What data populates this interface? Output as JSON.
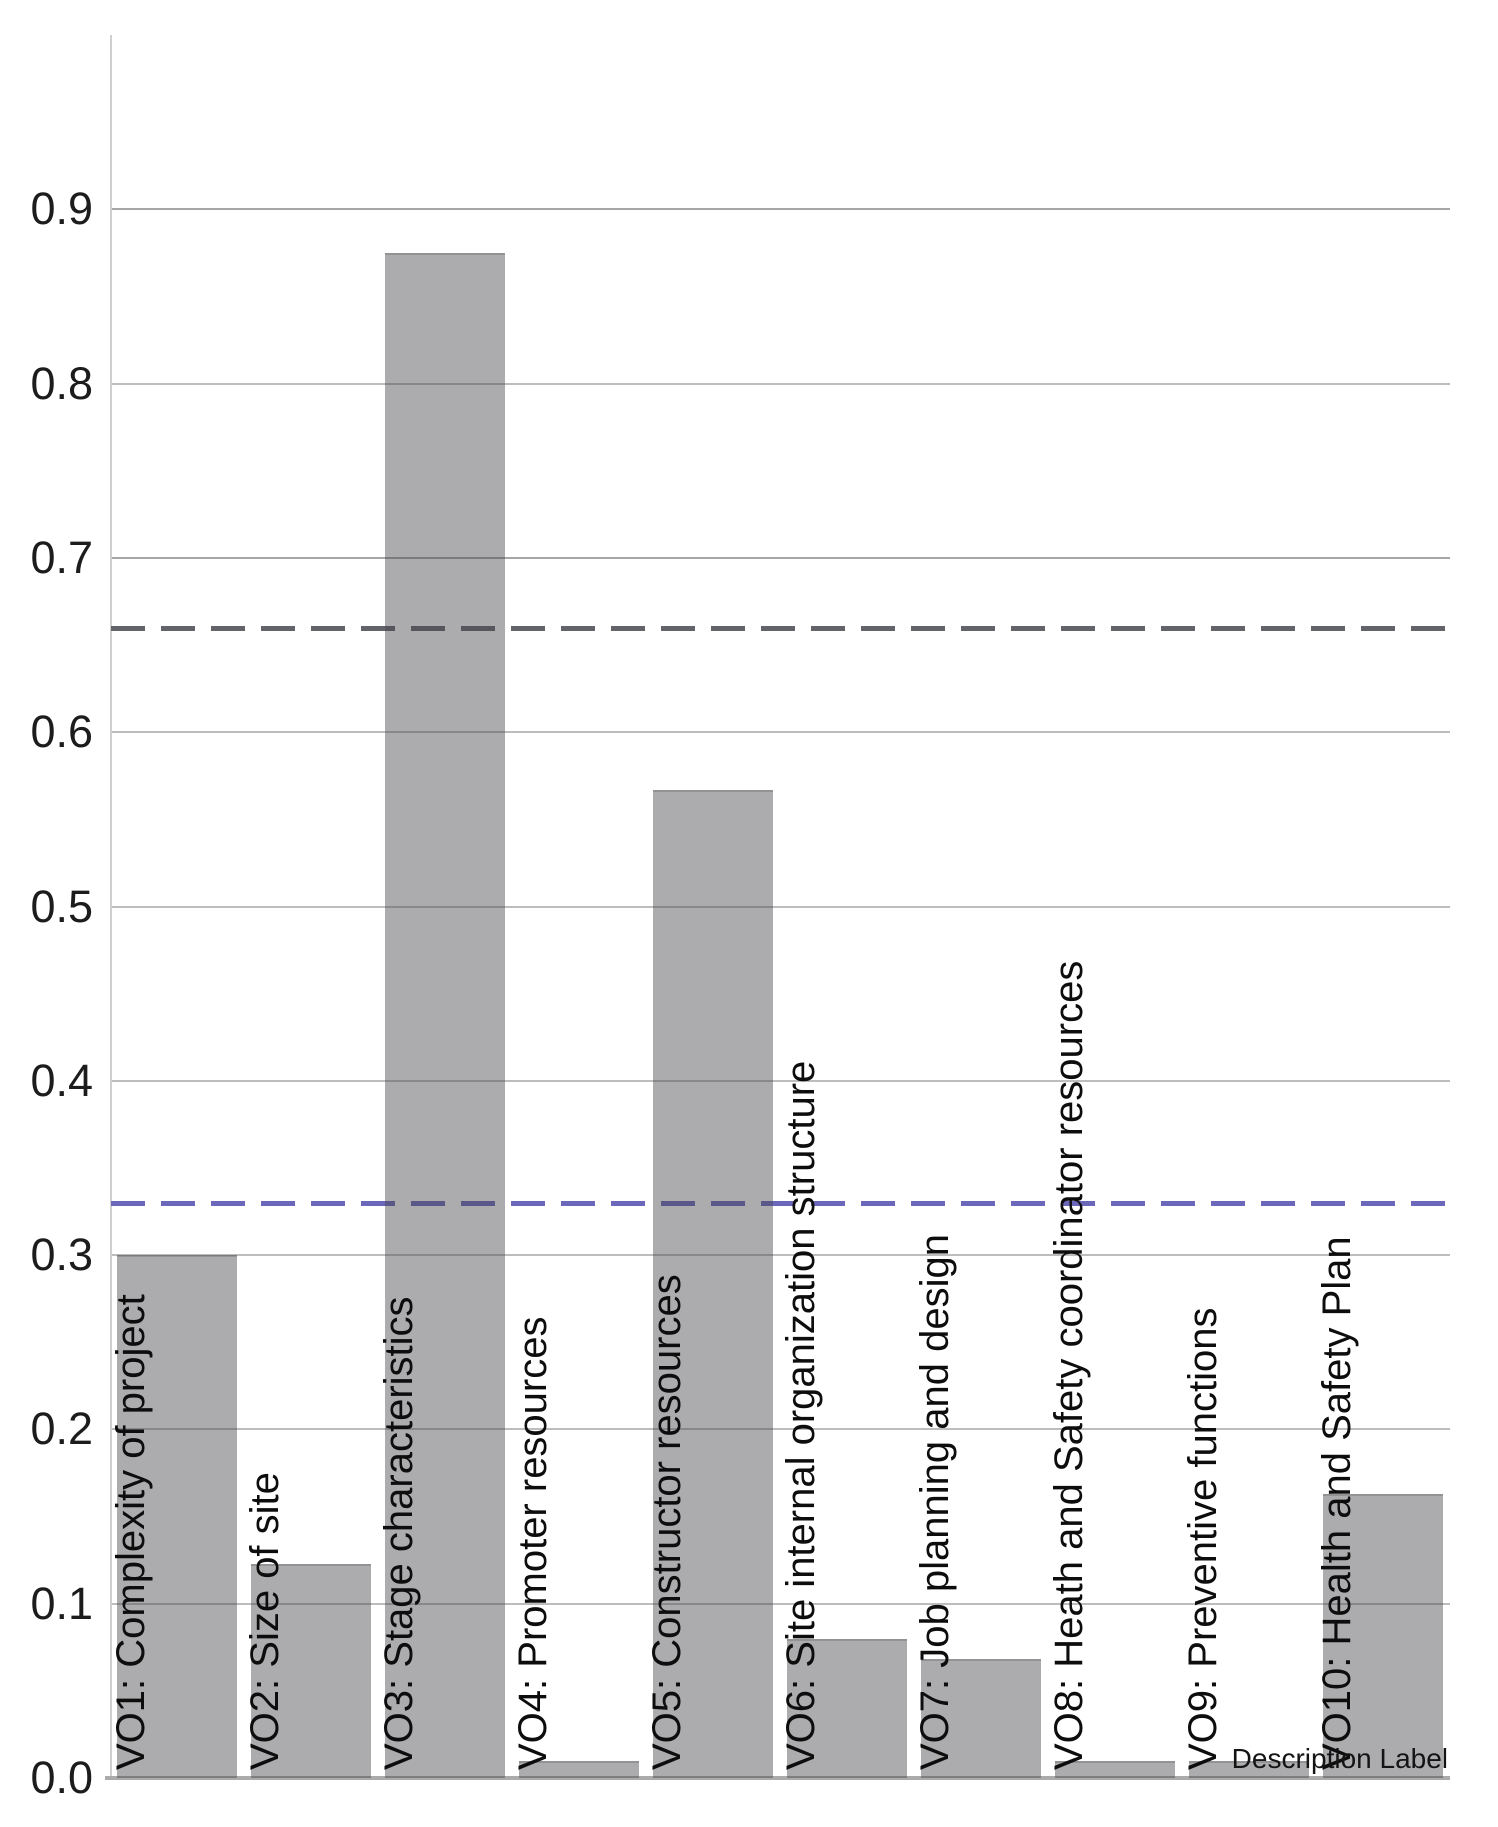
{
  "chart_data": {
    "type": "bar",
    "title": "",
    "xlabel": "Description Label",
    "ylabel": "",
    "categories": [
      "VO1: Complexity of project",
      "VO2: Size of site",
      "VO3: Stage characteristics",
      "VO4: Promoter resources",
      "VO5: Constructor resources",
      "VO6: Site internal organization structure",
      "VO7: Job planning and design",
      "VO8: Heath and Safety coordinator resources",
      "VO9: Preventive functions",
      "VO10: Health and Safety Plan"
    ],
    "values": [
      0.3,
      0.123,
      0.875,
      0.01,
      0.567,
      0.08,
      0.068,
      0.01,
      0.01,
      0.163
    ],
    "yticks": [
      0.0,
      0.1,
      0.2,
      0.3,
      0.4,
      0.5,
      0.6,
      0.7,
      0.8,
      0.9
    ],
    "ylim": [
      0,
      1.0
    ],
    "grid": "horizontal",
    "legend": "none",
    "bar_color": "rgba(72,70,76,0.45)",
    "bar_edge_color": "#8e8c92",
    "thresholds": [
      {
        "name": "upper-threshold",
        "value": 0.66,
        "style": "dashed",
        "color": "#63636a"
      },
      {
        "name": "lower-threshold",
        "value": 0.33,
        "style": "dashed",
        "color": "#6b67ba"
      }
    ],
    "axis_color": "#cfcfcf",
    "gridline_color": "#bdbdbd",
    "baseline_color": "#ababab",
    "tick_label_color": "#1c1c1c",
    "bar_label_color": "#0d0d0d"
  }
}
